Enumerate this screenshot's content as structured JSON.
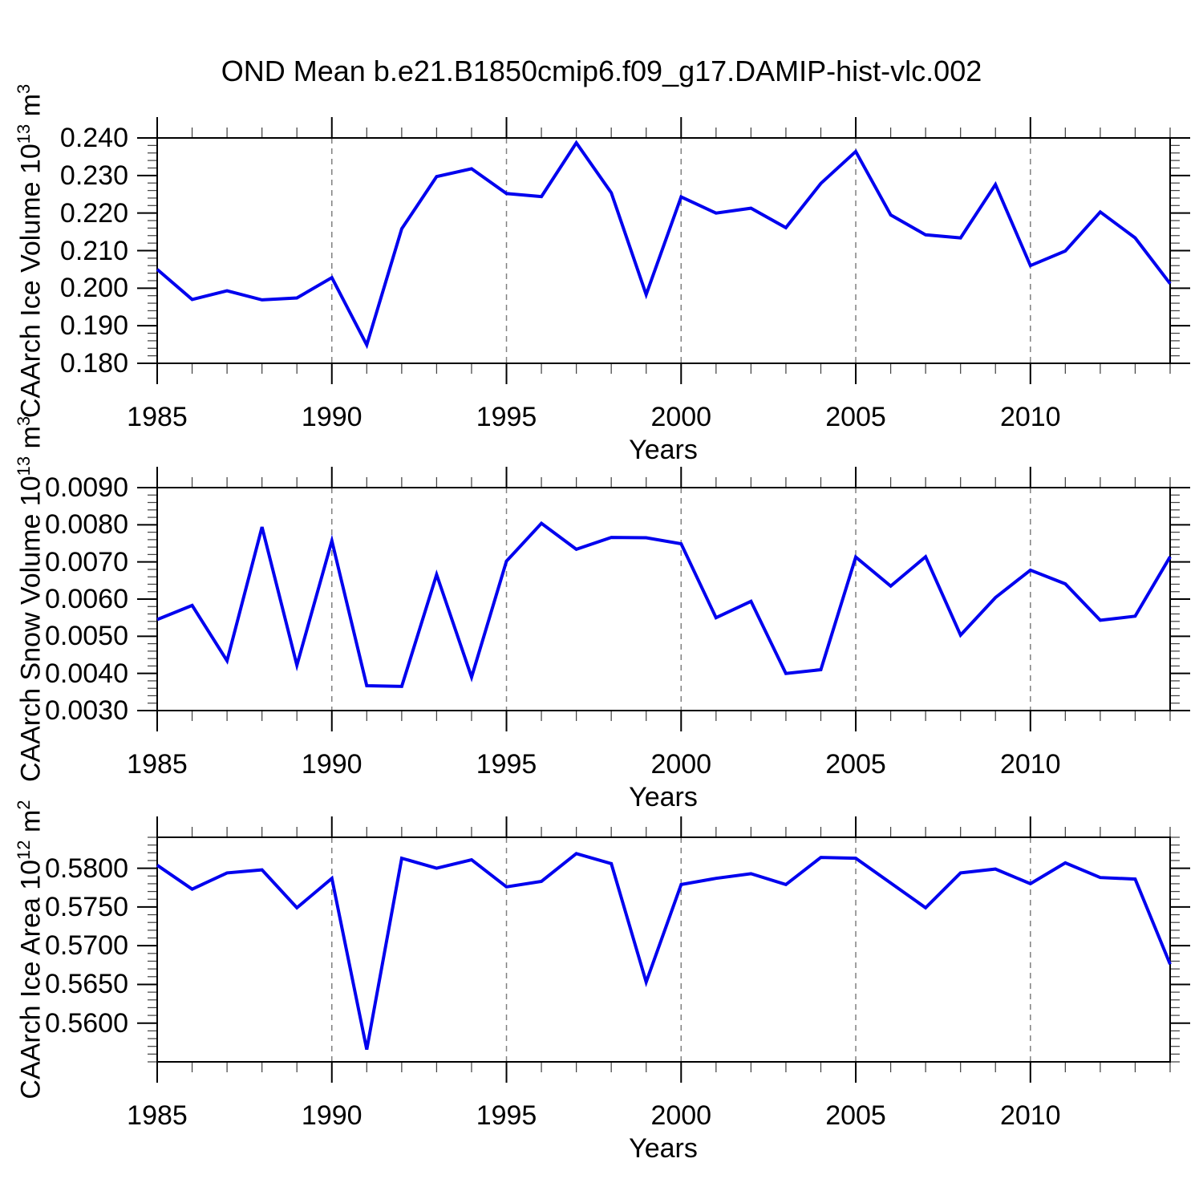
{
  "title": "OND Mean b.e21.B1850cmip6.f09_g17.DAMIP-hist-vlc.002",
  "colors": {
    "line": "#0000ee",
    "grid": "#808080",
    "axis": "#000000",
    "minor_tick": "#444444",
    "background": "#ffffff"
  },
  "chart_data": [
    {
      "type": "line",
      "name": "ice-volume",
      "xlabel": "Years",
      "ylabel": "CAArch Ice Volume 10^13 m^3",
      "ylabel_parts": [
        {
          "t": "CAArch Ice Volume 10",
          "sup": false
        },
        {
          "t": "13",
          "sup": true
        },
        {
          "t": " m",
          "sup": false
        },
        {
          "t": "3",
          "sup": true
        }
      ],
      "xlim": [
        1985,
        2014
      ],
      "ylim": [
        0.18,
        0.24
      ],
      "x": [
        1985,
        1986,
        1987,
        1988,
        1989,
        1990,
        1991,
        1992,
        1993,
        1994,
        1995,
        1996,
        1997,
        1998,
        1999,
        2000,
        2001,
        2002,
        2003,
        2004,
        2005,
        2006,
        2007,
        2008,
        2009,
        2010,
        2011,
        2012,
        2013,
        2014
      ],
      "values": [
        0.205,
        0.197,
        0.1993,
        0.1969,
        0.1974,
        0.2028,
        0.1849,
        0.2158,
        0.2297,
        0.2318,
        0.2252,
        0.2244,
        0.2387,
        0.2254,
        0.1983,
        0.2243,
        0.22,
        0.2213,
        0.2161,
        0.2279,
        0.2364,
        0.2195,
        0.2142,
        0.2134,
        0.2276,
        0.206,
        0.2099,
        0.2203,
        0.2134,
        0.2012
      ],
      "yticks": [
        0.24,
        0.23,
        0.22,
        0.21,
        0.2,
        0.19,
        0.18
      ],
      "y_tick_labels": [
        "0.240",
        "0.230",
        "0.220",
        "0.210",
        "0.200",
        "0.190",
        "0.180"
      ],
      "y_minor_step": 0.002,
      "xticks": [
        1985,
        1990,
        1995,
        2000,
        2005,
        2010
      ],
      "x_tick_labels": [
        "1985",
        "1990",
        "1995",
        "2000",
        "2005",
        "2010"
      ],
      "x_minor_step": 1,
      "grid_years": [
        1990,
        1995,
        2000,
        2005,
        2010
      ]
    },
    {
      "type": "line",
      "name": "snow-volume",
      "xlabel": "Years",
      "ylabel": "CAArch Snow Volume 10^13 m^3",
      "ylabel_parts": [
        {
          "t": "CAArch Snow Volume 10",
          "sup": false
        },
        {
          "t": "13",
          "sup": true
        },
        {
          "t": " m",
          "sup": false
        },
        {
          "t": "3",
          "sup": true
        }
      ],
      "xlim": [
        1985,
        2014
      ],
      "ylim": [
        0.003,
        0.009
      ],
      "x": [
        1985,
        1986,
        1987,
        1988,
        1989,
        1990,
        1991,
        1992,
        1993,
        1994,
        1995,
        1996,
        1997,
        1998,
        1999,
        2000,
        2001,
        2002,
        2003,
        2004,
        2005,
        2006,
        2007,
        2008,
        2009,
        2010,
        2011,
        2012,
        2013,
        2014
      ],
      "values": [
        0.00545,
        0.00583,
        0.00434,
        0.00794,
        0.00422,
        0.00757,
        0.00367,
        0.00365,
        0.00666,
        0.0039,
        0.00702,
        0.00804,
        0.00734,
        0.00766,
        0.00765,
        0.00749,
        0.0055,
        0.00594,
        0.004,
        0.0041,
        0.00713,
        0.00635,
        0.00714,
        0.00503,
        0.00604,
        0.00678,
        0.00641,
        0.00543,
        0.00554,
        0.00714
      ],
      "yticks": [
        0.009,
        0.008,
        0.007,
        0.006,
        0.005,
        0.004,
        0.003
      ],
      "y_tick_labels": [
        "0.0090",
        "0.0080",
        "0.0070",
        "0.0060",
        "0.0050",
        "0.0040",
        "0.0030"
      ],
      "y_minor_step": 0.0002,
      "xticks": [
        1985,
        1990,
        1995,
        2000,
        2005,
        2010
      ],
      "x_tick_labels": [
        "1985",
        "1990",
        "1995",
        "2000",
        "2005",
        "2010"
      ],
      "x_minor_step": 1,
      "grid_years": [
        1990,
        1995,
        2000,
        2005,
        2010
      ]
    },
    {
      "type": "line",
      "name": "ice-area",
      "xlabel": "Years",
      "ylabel": "CAArch Ice Area 10^12 m^2",
      "ylabel_parts": [
        {
          "t": "CAArch Ice Area 10",
          "sup": false
        },
        {
          "t": "12",
          "sup": true
        },
        {
          "t": " m",
          "sup": false
        },
        {
          "t": "2",
          "sup": true
        }
      ],
      "xlim": [
        1985,
        2014
      ],
      "ylim": [
        0.555,
        0.584
      ],
      "x": [
        1985,
        1986,
        1987,
        1988,
        1989,
        1990,
        1991,
        1992,
        1993,
        1994,
        1995,
        1996,
        1997,
        1998,
        1999,
        2000,
        2001,
        2002,
        2003,
        2004,
        2005,
        2006,
        2007,
        2008,
        2009,
        2010,
        2011,
        2012,
        2013,
        2014
      ],
      "values": [
        0.5804,
        0.5773,
        0.5794,
        0.5798,
        0.5749,
        0.5787,
        0.5566,
        0.5813,
        0.58,
        0.5811,
        0.5776,
        0.5783,
        0.5819,
        0.5806,
        0.5653,
        0.5779,
        0.5787,
        0.5793,
        0.5779,
        0.5814,
        0.5813,
        0.5781,
        0.5749,
        0.5794,
        0.5799,
        0.578,
        0.5807,
        0.5788,
        0.5786,
        0.5676
      ],
      "yticks": [
        0.58,
        0.575,
        0.57,
        0.565,
        0.56
      ],
      "y_tick_labels": [
        "0.5800",
        "0.5750",
        "0.5700",
        "0.5650",
        "0.5600"
      ],
      "y_minor_step": 0.001,
      "xticks": [
        1985,
        1990,
        1995,
        2000,
        2005,
        2010
      ],
      "x_tick_labels": [
        "1985",
        "1990",
        "1995",
        "2000",
        "2005",
        "2010"
      ],
      "x_minor_step": 1,
      "grid_years": [
        1990,
        1995,
        2000,
        2005,
        2010
      ]
    }
  ]
}
